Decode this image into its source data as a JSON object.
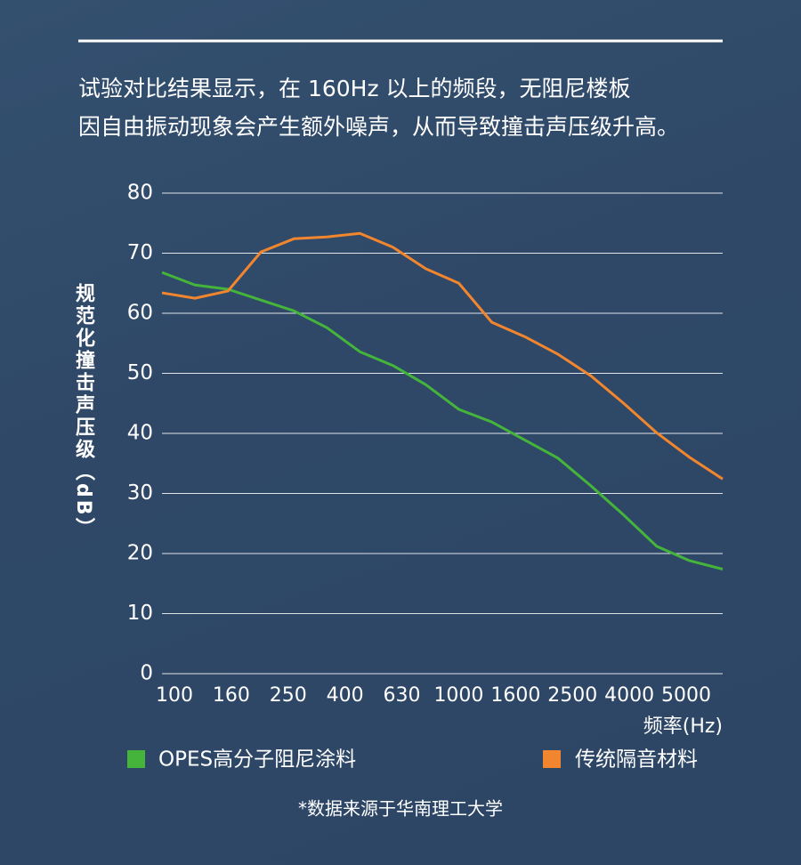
{
  "chart_data": {
    "type": "line",
    "title": [
      "试验对比结果显示，在 160Hz 以上的频段，无阻尼楼板",
      "因自由振动现象会产生额外噪声，从而导致撞击声压级升高。"
    ],
    "y_label": "规范化撞击声压级（dB）",
    "x_label": "频率(Hz)",
    "note": "*数据来源于华南理工大学",
    "x_tick_labels": [
      100,
      160,
      250,
      400,
      630,
      1000,
      1600,
      2500,
      4000,
      5000
    ],
    "ylim": [
      0,
      80
    ],
    "yticks": [
      0,
      10,
      20,
      30,
      40,
      50,
      60,
      70,
      80
    ],
    "grid": true,
    "series": [
      {
        "name": "OPES高分子阻尼涂料",
        "color": "#44b53a",
        "values": [
          66.8,
          64.7,
          64.0,
          62.2,
          60.4,
          57.6,
          53.6,
          51.3,
          48.1,
          44.0,
          41.9,
          38.9,
          35.9,
          31.3,
          26.4,
          21.2,
          18.8,
          17.4
        ]
      },
      {
        "name": "传统隔音材料",
        "color": "#f2862e",
        "values": [
          63.4,
          62.5,
          63.7,
          70.2,
          72.4,
          72.7,
          73.3,
          71.0,
          67.4,
          65.0,
          58.5,
          56.1,
          53.2,
          49.6,
          45.0,
          40.1,
          36.0,
          32.4
        ]
      }
    ]
  }
}
